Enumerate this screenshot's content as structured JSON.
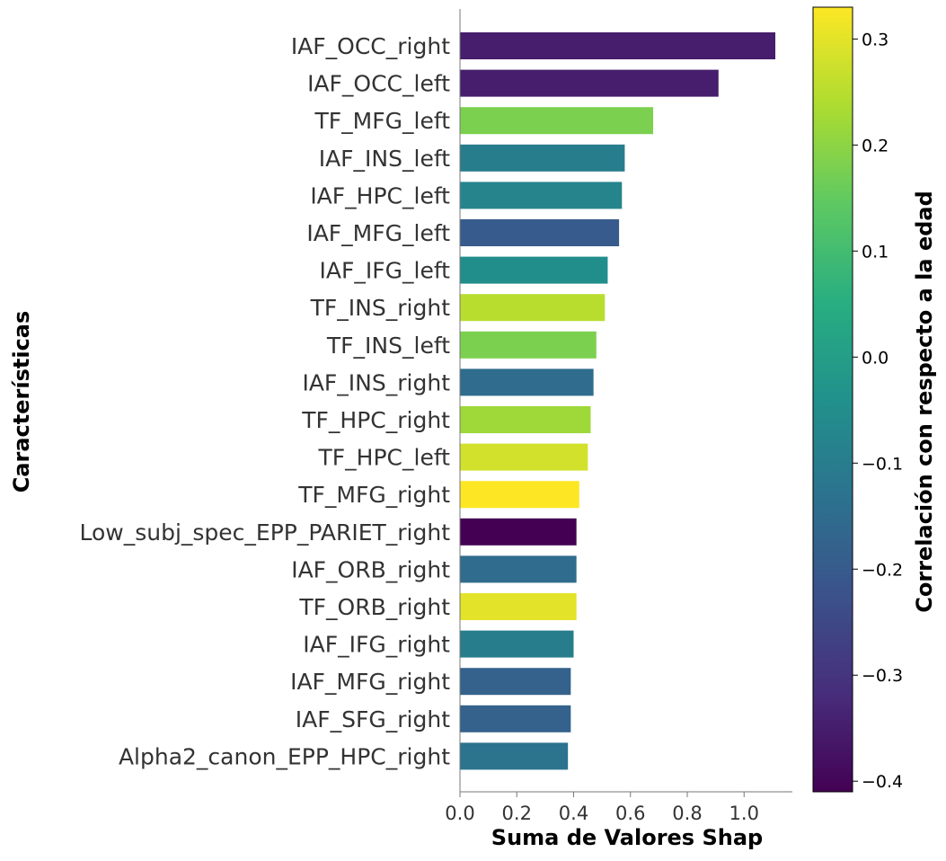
{
  "chart_data": {
    "type": "bar",
    "orientation": "horizontal",
    "categories": [
      "IAF_OCC_right",
      "IAF_OCC_left",
      "TF_MFG_left",
      "IAF_INS_left",
      "IAF_HPC_left",
      "IAF_MFG_left",
      "IAF_IFG_left",
      "TF_INS_right",
      "TF_INS_left",
      "IAF_INS_right",
      "TF_HPC_right",
      "TF_HPC_left",
      "TF_MFG_right",
      "Low_subj_spec_EPP_PARIET_right",
      "IAF_ORB_right",
      "TF_ORB_right",
      "IAF_IFG_right",
      "IAF_MFG_right",
      "IAF_SFG_right",
      "Alpha2_canon_EPP_HPC_right"
    ],
    "values": [
      1.11,
      0.91,
      0.68,
      0.58,
      0.57,
      0.56,
      0.52,
      0.51,
      0.48,
      0.47,
      0.46,
      0.45,
      0.42,
      0.41,
      0.41,
      0.41,
      0.4,
      0.39,
      0.39,
      0.38
    ],
    "correlations": [
      -0.35,
      -0.35,
      0.18,
      -0.1,
      -0.08,
      -0.2,
      -0.05,
      0.25,
      0.18,
      -0.15,
      0.22,
      0.28,
      0.33,
      -0.41,
      -0.15,
      0.3,
      -0.1,
      -0.18,
      -0.18,
      -0.13
    ],
    "xlabel": "Suma de Valores Shap",
    "ylabel": "Características",
    "xlim": [
      0,
      1.17
    ],
    "xticks": [
      "0.0",
      "0.2",
      "0.4",
      "0.6",
      "0.8",
      "1.0"
    ],
    "xtick_values": [
      0,
      0.2,
      0.4,
      0.6,
      0.8,
      1.0
    ],
    "colorbar": {
      "label": "Correlación con respecto a la edad",
      "range": [
        -0.41,
        0.33
      ],
      "colormap": "viridis",
      "ticks": [
        "−0.4",
        "−0.3",
        "−0.2",
        "−0.1",
        "0.0",
        "0.1",
        "0.2",
        "0.3"
      ],
      "tick_values": [
        -0.4,
        -0.3,
        -0.2,
        -0.1,
        0.0,
        0.1,
        0.2,
        0.3
      ]
    },
    "grid": false,
    "legend": "none"
  }
}
